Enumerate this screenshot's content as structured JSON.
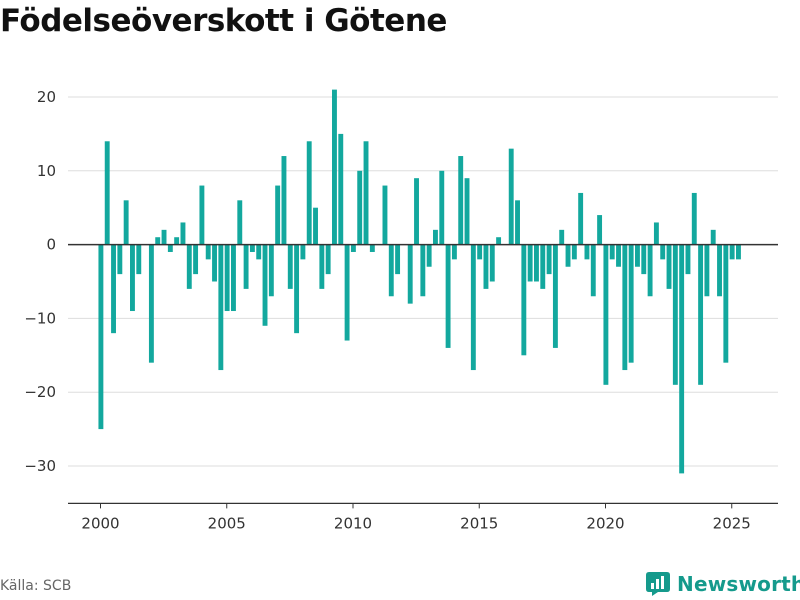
{
  "title": "Födelseöverskott i Götene",
  "source": "Källa: SCB",
  "brand": "Newsworthy",
  "colors": {
    "bar": "#13a89e",
    "brand": "#159a8c",
    "zero_line": "#333333",
    "grid": "#dddddd"
  },
  "chart_data": {
    "type": "bar",
    "title": "Födelseöverskott i Götene",
    "xlabel": "",
    "ylabel": "",
    "x_ticks": [
      "2000",
      "2005",
      "2010",
      "2015",
      "2020",
      "2025"
    ],
    "y_ticks": [
      "20",
      "10",
      "0",
      "−10",
      "−20",
      "−30"
    ],
    "ylim": [
      -35,
      23
    ],
    "xlim": [
      1998.85,
      2026.85
    ],
    "grid": true,
    "legend": "none",
    "frequency": "quarterly",
    "start": "2000 Q1",
    "values": [
      -25,
      14,
      -12,
      -4,
      6,
      -9,
      -4,
      0,
      -16,
      1,
      2,
      -1,
      1,
      3,
      -6,
      -4,
      8,
      -2,
      -5,
      -17,
      -9,
      -9,
      6,
      -6,
      -1,
      -2,
      -11,
      -7,
      8,
      12,
      -6,
      -12,
      -2,
      14,
      5,
      -6,
      -4,
      21,
      15,
      -13,
      -1,
      10,
      14,
      -1,
      0,
      8,
      -7,
      -4,
      0,
      -8,
      9,
      -7,
      -3,
      2,
      10,
      -14,
      -2,
      12,
      9,
      -17,
      -2,
      -6,
      -5,
      1,
      0,
      13,
      6,
      -15,
      -5,
      -5,
      -6,
      -4,
      -14,
      2,
      -3,
      -2,
      7,
      -2,
      -7,
      4,
      -19,
      -2,
      -3,
      -17,
      -16,
      -3,
      -4,
      -7,
      3,
      -2,
      -6,
      -19,
      -31,
      -4,
      7,
      -19,
      -7,
      2,
      -7,
      -16,
      -2,
      -2
    ]
  }
}
